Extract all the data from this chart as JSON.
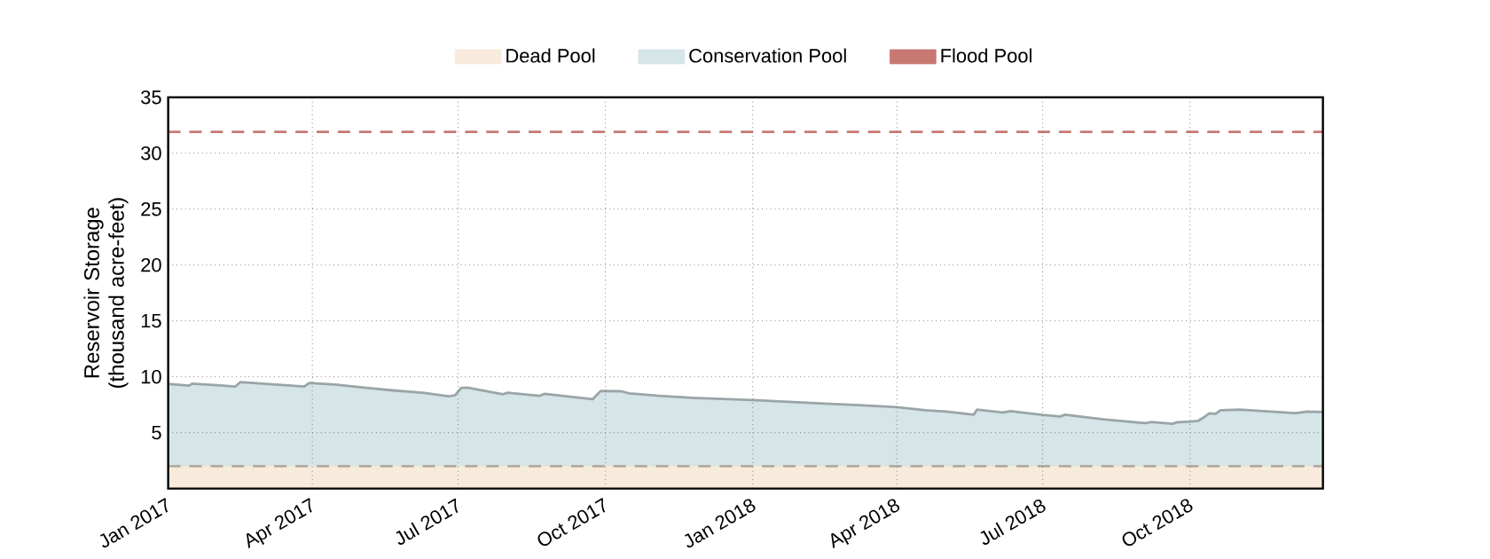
{
  "chart_data": {
    "type": "area",
    "ylabel": "Reservoir Storage (thousand acre-feet)",
    "xlim": [
      "2017-01-01",
      "2018-12-23"
    ],
    "xticks": [
      {
        "value": "2017-01-01",
        "label": "Jan 2017"
      },
      {
        "value": "2017-04-01",
        "label": "Apr 2017"
      },
      {
        "value": "2017-07-01",
        "label": "Jul 2017"
      },
      {
        "value": "2017-10-01",
        "label": "Oct 2017"
      },
      {
        "value": "2018-01-01",
        "label": "Jan 2018"
      },
      {
        "value": "2018-04-01",
        "label": "Apr 2018"
      },
      {
        "value": "2018-07-01",
        "label": "Jul 2018"
      },
      {
        "value": "2018-10-01",
        "label": "Oct 2018"
      }
    ],
    "ylim": [
      0,
      35
    ],
    "yticks": [
      5,
      10,
      15,
      20,
      25,
      30,
      35
    ],
    "grid": true,
    "legend": "top",
    "series": [
      {
        "name": "Dead Pool",
        "color": "#f8ebdc",
        "line_style": "dashed",
        "x": [
          "2017-01-01",
          "2018-12-23"
        ],
        "values": [
          2,
          2
        ]
      },
      {
        "name": "Conservation Pool",
        "color": "#d6e5e8",
        "line_style": "solid",
        "x": [
          "2017-01-01",
          "2017-01-14",
          "2017-01-16",
          "2017-02-12",
          "2017-02-15",
          "2017-03-27",
          "2017-03-30",
          "2017-04-15",
          "2017-05-05",
          "2017-05-23",
          "2017-06-09",
          "2017-06-25",
          "2017-06-29",
          "2017-07-03",
          "2017-07-07",
          "2017-07-29",
          "2017-08-01",
          "2017-08-21",
          "2017-08-24",
          "2017-09-23",
          "2017-09-28",
          "2017-10-11",
          "2017-10-16",
          "2017-11-02",
          "2017-11-24",
          "2018-01-01",
          "2018-02-15",
          "2018-03-09",
          "2018-04-01",
          "2018-04-19",
          "2018-05-02",
          "2018-05-19",
          "2018-05-21",
          "2018-06-06",
          "2018-06-11",
          "2018-07-01",
          "2018-07-12",
          "2018-07-15",
          "2018-08-08",
          "2018-09-03",
          "2018-09-07",
          "2018-09-20",
          "2018-09-23",
          "2018-10-01",
          "2018-10-06",
          "2018-10-10",
          "2018-10-13",
          "2018-10-17",
          "2018-10-20",
          "2018-11-01",
          "2018-12-06",
          "2018-12-13",
          "2018-12-23"
        ],
        "values": [
          9.37,
          9.2,
          9.39,
          9.13,
          9.52,
          9.13,
          9.44,
          9.31,
          9.0,
          8.76,
          8.57,
          8.25,
          8.33,
          9.0,
          9.02,
          8.44,
          8.57,
          8.3,
          8.47,
          7.99,
          8.73,
          8.7,
          8.52,
          8.31,
          8.12,
          7.91,
          7.6,
          7.46,
          7.28,
          7.0,
          6.88,
          6.61,
          7.06,
          6.8,
          6.93,
          6.59,
          6.45,
          6.61,
          6.19,
          5.85,
          5.95,
          5.79,
          5.93,
          6.0,
          6.06,
          6.4,
          6.72,
          6.69,
          7.01,
          7.06,
          6.75,
          6.88,
          6.85
        ]
      },
      {
        "name": "Flood Pool",
        "type": "line",
        "color": "#c87872",
        "line_style": "dashed",
        "x": [
          "2017-01-01",
          "2018-12-23"
        ],
        "values": [
          31.9,
          31.9
        ]
      }
    ]
  }
}
